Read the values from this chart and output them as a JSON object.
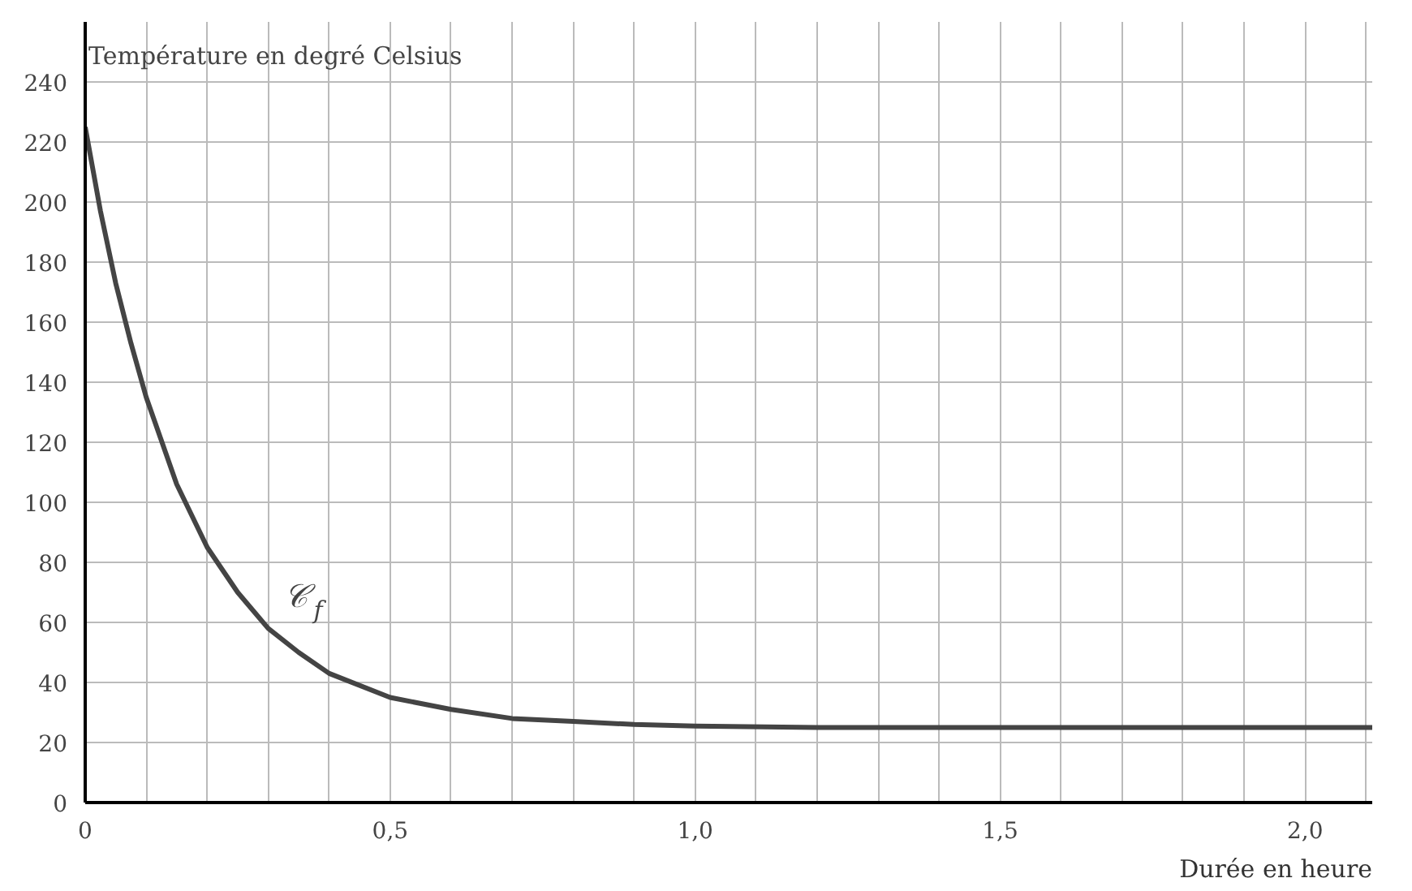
{
  "chart_data": {
    "type": "line",
    "xlabel": "Durée en heure",
    "ylabel": "Température en degré Celsius",
    "x": [
      0,
      0.025,
      0.05,
      0.075,
      0.1,
      0.15,
      0.2,
      0.25,
      0.3,
      0.35,
      0.4,
      0.5,
      0.6,
      0.7,
      0.8,
      0.9,
      1.0,
      1.2,
      1.5,
      1.8,
      2.11
    ],
    "series": [
      {
        "color": "#444444",
        "values": [
          225,
          197,
          173,
          153,
          135,
          106,
          85,
          70,
          58,
          50,
          43,
          35,
          31,
          28,
          27,
          26,
          25.5,
          25,
          25,
          25,
          25
        ]
      }
    ],
    "xlim": [
      0,
      2.11
    ],
    "ylim": [
      0,
      260
    ],
    "xticks": [
      0,
      {
        "value": 0.1,
        "label": null
      },
      {
        "value": 0.2,
        "label": null
      },
      {
        "value": 0.3,
        "label": null
      },
      {
        "value": 0.4,
        "label": null
      },
      {
        "value": 0.5,
        "label": "0,5"
      },
      {
        "value": 0.6,
        "label": null
      },
      {
        "value": 0.7,
        "label": null
      },
      {
        "value": 0.8,
        "label": null
      },
      {
        "value": 0.9,
        "label": null
      },
      {
        "value": 1.0,
        "label": "1,0"
      },
      {
        "value": 1.1,
        "label": null
      },
      {
        "value": 1.2,
        "label": null
      },
      {
        "value": 1.3,
        "label": null
      },
      {
        "value": 1.4,
        "label": null
      },
      {
        "value": 1.5,
        "label": "1,5"
      },
      {
        "value": 1.6,
        "label": null
      },
      {
        "value": 1.7,
        "label": null
      },
      {
        "value": 1.8,
        "label": null
      },
      {
        "value": 1.9,
        "label": null
      },
      {
        "value": 2.0,
        "label": "2,0"
      },
      {
        "value": 2.1,
        "label": null
      }
    ],
    "yticks": [
      0,
      20,
      40,
      60,
      80,
      100,
      120,
      140,
      160,
      180,
      200,
      220,
      240
    ],
    "grid": true,
    "marker": "none",
    "line_style": "solid",
    "annotations": [
      "𝒞$_{f}$"
    ]
  }
}
